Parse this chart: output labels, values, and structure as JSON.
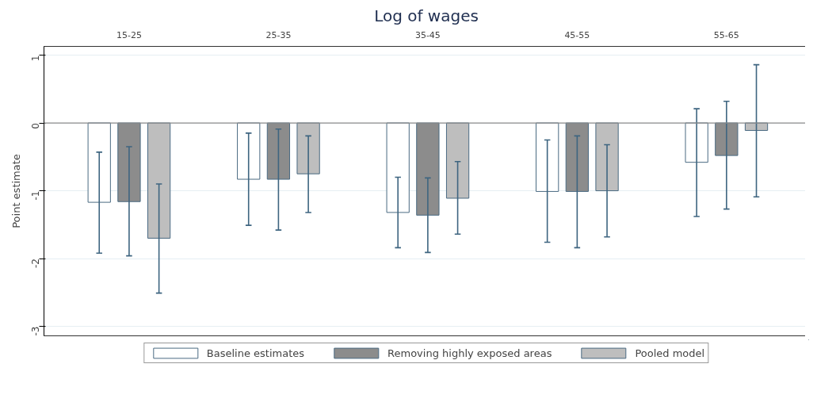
{
  "chart_data": {
    "type": "bar",
    "title": "Log of wages",
    "ylabel": "Point estimate",
    "categories": [
      "15-25",
      "25-35",
      "35-45",
      "45-55",
      "55-65"
    ],
    "series": [
      {
        "name": "Baseline estimates",
        "color": "#ffffff",
        "values": [
          -1.17,
          -0.83,
          -1.32,
          -1.01,
          -0.58
        ],
        "errors": [
          [
            -1.92,
            -0.43
          ],
          [
            -1.51,
            -0.15
          ],
          [
            -1.84,
            -0.8
          ],
          [
            -1.76,
            -0.25
          ],
          [
            -1.38,
            0.21
          ]
        ]
      },
      {
        "name": "Removing highly exposed areas",
        "color": "#8c8c8c",
        "values": [
          -1.16,
          -0.83,
          -1.36,
          -1.01,
          -0.48
        ],
        "errors": [
          [
            -1.96,
            -0.35
          ],
          [
            -1.58,
            -0.09
          ],
          [
            -1.91,
            -0.81
          ],
          [
            -1.84,
            -0.19
          ],
          [
            -1.27,
            0.32
          ]
        ]
      },
      {
        "name": "Pooled model",
        "color": "#bebebe",
        "values": [
          -1.7,
          -0.75,
          -1.11,
          -1.0,
          -0.11
        ],
        "errors": [
          [
            -2.51,
            -0.9
          ],
          [
            -1.32,
            -0.19
          ],
          [
            -1.64,
            -0.57
          ],
          [
            -1.68,
            -0.32
          ],
          [
            -1.09,
            0.86
          ]
        ]
      }
    ],
    "ylim": [
      -3.14,
      1.13
    ],
    "yticks": [
      -3,
      -2,
      -1,
      0,
      1
    ],
    "grid": "y",
    "legend": "bottom",
    "ref_lines": [
      {
        "axis": "y",
        "value": 0,
        "color": "#8c8c8c"
      }
    ]
  }
}
